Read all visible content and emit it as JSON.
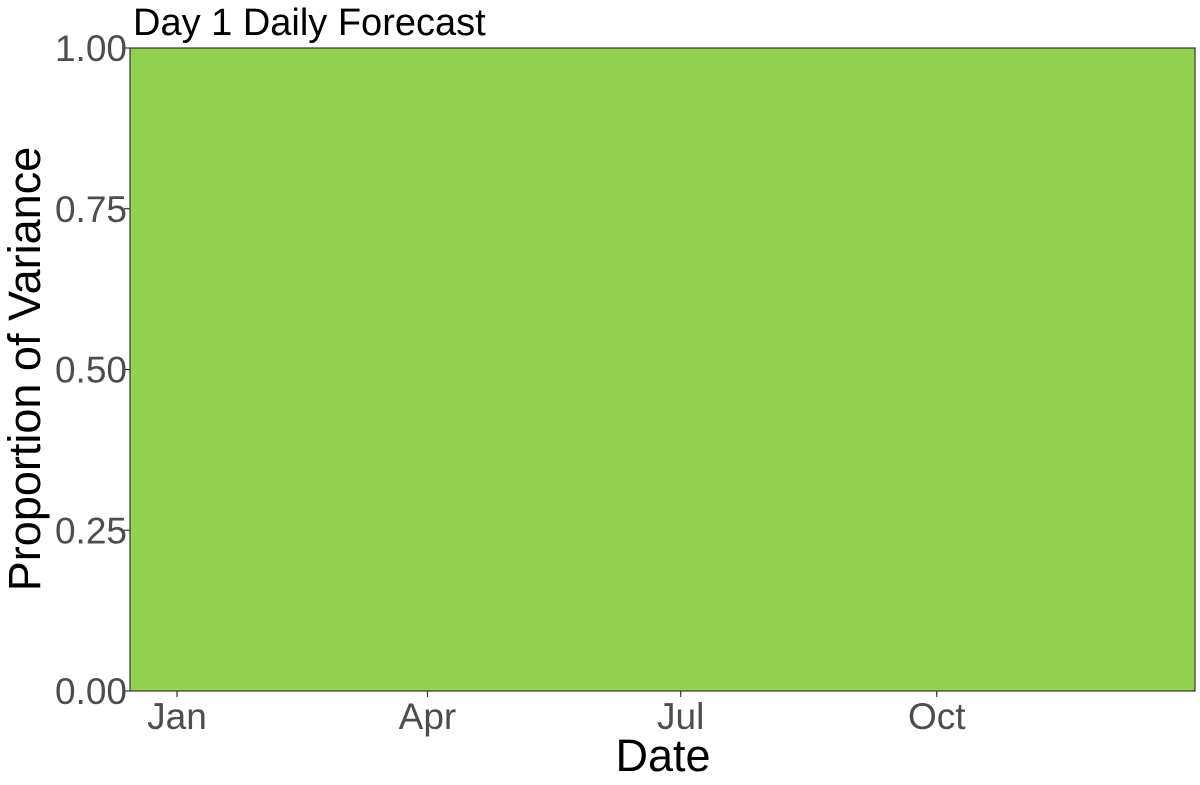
{
  "chart_data": {
    "type": "area",
    "title": "Day 1 Daily Forecast",
    "xlabel": "Date",
    "ylabel": "Proportion of Variance",
    "x_type": "date",
    "xlim": [
      "2021-01-01",
      "2021-12-31"
    ],
    "ylim": [
      0,
      1
    ],
    "x_ticks": [
      {
        "date": "2021-01-01",
        "label": "Jan"
      },
      {
        "date": "2021-04-01",
        "label": "Apr"
      },
      {
        "date": "2021-07-01",
        "label": "Jul"
      },
      {
        "date": "2021-10-01",
        "label": "Oct"
      }
    ],
    "y_ticks": [
      {
        "value": 0.0,
        "label": "0.00"
      },
      {
        "value": 0.25,
        "label": "0.25"
      },
      {
        "value": 0.5,
        "label": "0.50"
      },
      {
        "value": 0.75,
        "label": "0.75"
      },
      {
        "value": 1.0,
        "label": "1.00"
      }
    ],
    "series": [
      {
        "color": "#93d150",
        "x": [
          "2021-01-01",
          "2021-12-31"
        ],
        "values": [
          1.0,
          1.0
        ]
      }
    ],
    "grid": false,
    "legend": "none"
  }
}
